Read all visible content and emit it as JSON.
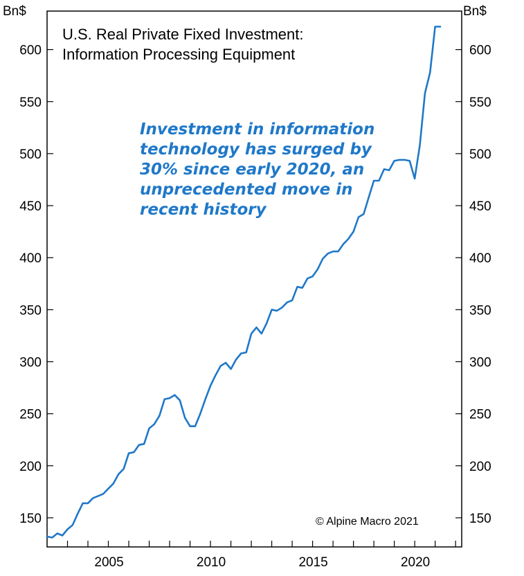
{
  "chart_data": {
    "type": "line",
    "title": [
      "U.S. Real Private Fixed Investment:",
      "Information Processing Equipment"
    ],
    "y_unit_left": "Bn$",
    "y_unit_right": "Bn$",
    "ylim": [
      122,
      637
    ],
    "yticks": [
      150,
      200,
      250,
      300,
      350,
      400,
      450,
      500,
      550,
      600
    ],
    "xlim": [
      2002.0,
      2022.3
    ],
    "xticks": [
      2005,
      2010,
      2015,
      2020
    ],
    "grid": false,
    "annotation": [
      "Investment in information",
      "technology has surged by",
      "30% since early 2020, an",
      "unprecedented move in",
      "recent history"
    ],
    "copyright": "© Alpine Macro 2021",
    "series": [
      {
        "color": "#1f78c8",
        "x": [
          2002.0,
          2002.25,
          2002.5,
          2002.75,
          2003.0,
          2003.25,
          2003.5,
          2003.75,
          2004.0,
          2004.25,
          2004.5,
          2004.75,
          2005.0,
          2005.25,
          2005.5,
          2005.75,
          2006.0,
          2006.25,
          2006.5,
          2006.75,
          2007.0,
          2007.25,
          2007.5,
          2007.75,
          2008.0,
          2008.25,
          2008.5,
          2008.75,
          2009.0,
          2009.25,
          2009.5,
          2009.75,
          2010.0,
          2010.25,
          2010.5,
          2010.75,
          2011.0,
          2011.25,
          2011.5,
          2011.75,
          2012.0,
          2012.25,
          2012.5,
          2012.75,
          2013.0,
          2013.25,
          2013.5,
          2013.75,
          2014.0,
          2014.25,
          2014.5,
          2014.75,
          2015.0,
          2015.25,
          2015.5,
          2015.75,
          2016.0,
          2016.25,
          2016.5,
          2016.75,
          2017.0,
          2017.25,
          2017.5,
          2017.75,
          2018.0,
          2018.25,
          2018.5,
          2018.75,
          2019.0,
          2019.25,
          2019.5,
          2019.75,
          2020.0,
          2020.25,
          2020.5,
          2020.75,
          2021.0,
          2021.25
        ],
        "values": [
          132,
          131,
          135,
          133,
          139,
          143,
          154,
          164,
          164,
          169,
          171,
          173,
          178,
          183,
          192,
          197,
          212,
          213,
          220,
          221,
          236,
          240,
          248,
          264,
          265,
          268,
          263,
          246,
          238,
          238,
          250,
          264,
          277,
          287,
          296,
          299,
          293,
          302,
          308,
          309,
          327,
          333,
          327,
          337,
          350,
          349,
          352,
          357,
          359,
          372,
          371,
          380,
          382,
          389,
          399,
          404,
          406,
          406,
          413,
          418,
          425,
          439,
          442,
          458,
          474,
          474,
          485,
          484,
          493,
          494,
          494,
          493,
          476,
          508,
          558,
          578,
          622,
          622
        ]
      }
    ]
  }
}
